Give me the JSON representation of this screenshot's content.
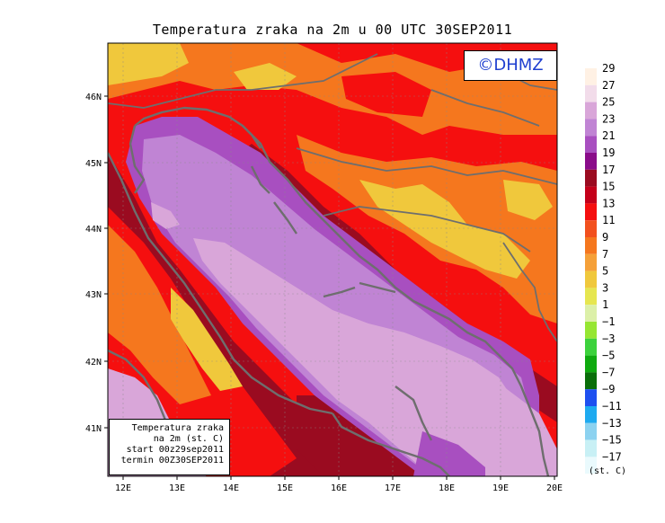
{
  "title": "Temperatura zraka na 2m u 00 UTC 30SEP2011",
  "credit": "©DHMZ",
  "info_box": {
    "line1": "Temperatura zraka",
    "line2": "na 2m (st. C)",
    "line3": "start 00z29sep2011",
    "line4": "termin 00Z30SEP2011"
  },
  "axes": {
    "lon_ticks": [
      "12E",
      "13E",
      "14E",
      "15E",
      "16E",
      "17E",
      "18E",
      "19E",
      "20E"
    ],
    "lat_ticks": [
      "46N",
      "45N",
      "44N",
      "43N",
      "42N",
      "41N"
    ]
  },
  "legend": {
    "unit": "(st. C)",
    "levels": [
      {
        "label": "29",
        "color": "#fff1e4"
      },
      {
        "label": "27",
        "color": "#f2dcea"
      },
      {
        "label": "25",
        "color": "#d9a6d9"
      },
      {
        "label": "23",
        "color": "#c084d4"
      },
      {
        "label": "21",
        "color": "#a84fc0"
      },
      {
        "label": "19",
        "color": "#8a0c8a"
      },
      {
        "label": "17",
        "color": "#9a0b20"
      },
      {
        "label": "15",
        "color": "#c4001a"
      },
      {
        "label": "13",
        "color": "#f50f0f"
      },
      {
        "label": "11",
        "color": "#f2501e"
      },
      {
        "label": "9",
        "color": "#f5771e"
      },
      {
        "label": "7",
        "color": "#f5a038"
      },
      {
        "label": "5",
        "color": "#f0c83c"
      },
      {
        "label": "3",
        "color": "#e6e650"
      },
      {
        "label": "1",
        "color": "#dcf0a8"
      },
      {
        "label": "−1",
        "color": "#96e632"
      },
      {
        "label": "−3",
        "color": "#3cd23c"
      },
      {
        "label": "−5",
        "color": "#0faa0f"
      },
      {
        "label": "−7",
        "color": "#0a6e0a"
      },
      {
        "label": "−9",
        "color": "#1e50f0"
      },
      {
        "label": "−11",
        "color": "#1eaaf0"
      },
      {
        "label": "−13",
        "color": "#8cd2f0"
      },
      {
        "label": "−15",
        "color": "#c8f0f5"
      },
      {
        "label": "−17",
        "color": "#eafafd"
      }
    ]
  },
  "colors": {
    "sea_light": "#d9a6d9",
    "sea_mid": "#c084d4",
    "sea_dark": "#a84fc0",
    "land_warm": "#f50f0f",
    "land_dark": "#9a0b20",
    "land_orange": "#f5771e",
    "land_yellow": "#f0c83c",
    "coast": "#6e6e6e"
  }
}
